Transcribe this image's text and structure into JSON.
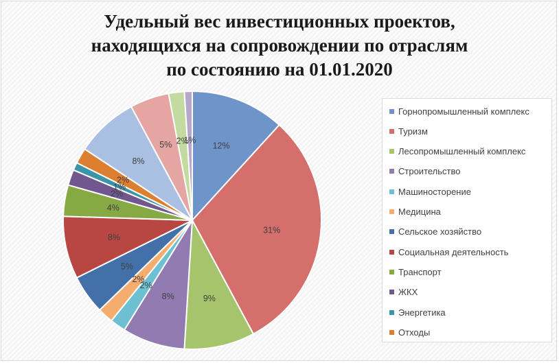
{
  "chart_data": {
    "type": "pie",
    "title_lines": [
      "Удельный вес инвестиционных проектов,",
      "находящихся на сопровождении по отраслям",
      "по состоянию на 01.01.2020"
    ],
    "categories": [
      "Горнопромышленный комплекс",
      "Туризм",
      "Лесопромышленный комплекс",
      "Строительство",
      "Машиносторение",
      "Медицина",
      "Сельское хозяйство",
      "Социальная деятельность",
      "Транспорт",
      "ЖКХ",
      "Энергетика",
      "Отходы"
    ],
    "values": [
      12,
      31,
      9,
      8,
      2,
      2,
      5,
      8,
      4,
      2,
      1,
      2
    ],
    "labels": [
      "12%",
      "31%",
      "9%",
      "8%",
      "2%",
      "2%",
      "5%",
      "8%",
      "4%",
      "2%",
      "1%",
      "2%"
    ],
    "extra_slices": [
      {
        "value": 8,
        "label": "8%"
      },
      {
        "value": 5,
        "label": "5%"
      },
      {
        "value": 2,
        "label": "2%"
      },
      {
        "value": 1,
        "label": "1%"
      }
    ],
    "colors": [
      "#6f94c9",
      "#d56f6c",
      "#a5c46c",
      "#917bb0",
      "#6cc0d2",
      "#f4ad6e",
      "#4470aa",
      "#b84744",
      "#86a943",
      "#70578f",
      "#3b95a6",
      "#dd7f30",
      "#a9c0e2",
      "#e5a5a3",
      "#c3dba0",
      "#b6a7cc"
    ],
    "legend_position": "right"
  }
}
